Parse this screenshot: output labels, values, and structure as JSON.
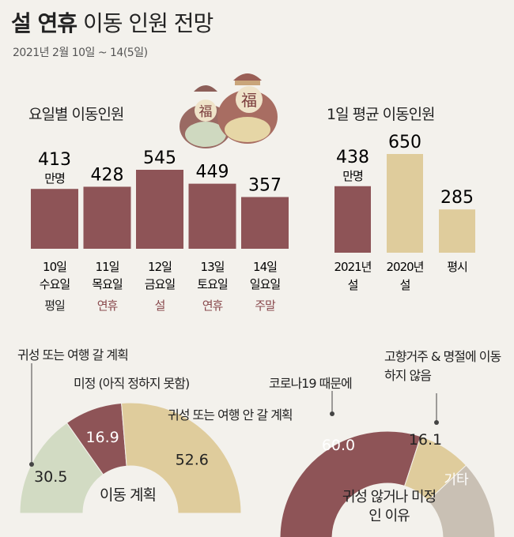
{
  "header": {
    "title_bold": "설 연휴",
    "title_rest": "이동 인원 전망",
    "subtitle": "2021년 2월 10일 ~ 14(5일)"
  },
  "colors": {
    "maroon": "#8e5457",
    "gold": "#dfcc9c",
    "sage": "#d2dbc3",
    "gray": "#c9c0b4",
    "brown_text": "#8a4a4e"
  },
  "unit_label": "만명",
  "chart_data": [
    {
      "type": "bar",
      "title": "요일별 이동인원",
      "categories": [
        "10일 수요일",
        "11일 목요일",
        "12일 금요일",
        "13일 토요일",
        "14일 일요일"
      ],
      "day_type": [
        "평일",
        "연휴",
        "설",
        "연휴",
        "주말"
      ],
      "values": [
        413,
        428,
        545,
        449,
        357
      ],
      "unit": "만명"
    },
    {
      "type": "bar",
      "title": "1일 평균 이동인원",
      "categories": [
        "2021년 설",
        "2020년 설",
        "평시"
      ],
      "values": [
        438,
        650,
        285
      ],
      "unit": "만명"
    },
    {
      "type": "pie",
      "title": "이동 계획",
      "categories": [
        "귀성 또는 여행 갈 계획",
        "미정 (아직 정하지 못함)",
        "귀성 또는 여행 안 갈 계획"
      ],
      "values": [
        30.5,
        16.9,
        52.6
      ]
    },
    {
      "type": "pie",
      "title": "귀성 않거나 미정인 이유",
      "categories": [
        "코로나19 때문에",
        "고향거주 & 명절에 이동하지 않음",
        "기타"
      ],
      "values": [
        60.0,
        16.1,
        null
      ],
      "value_labels": [
        "60.0",
        "16.1",
        ""
      ]
    }
  ]
}
